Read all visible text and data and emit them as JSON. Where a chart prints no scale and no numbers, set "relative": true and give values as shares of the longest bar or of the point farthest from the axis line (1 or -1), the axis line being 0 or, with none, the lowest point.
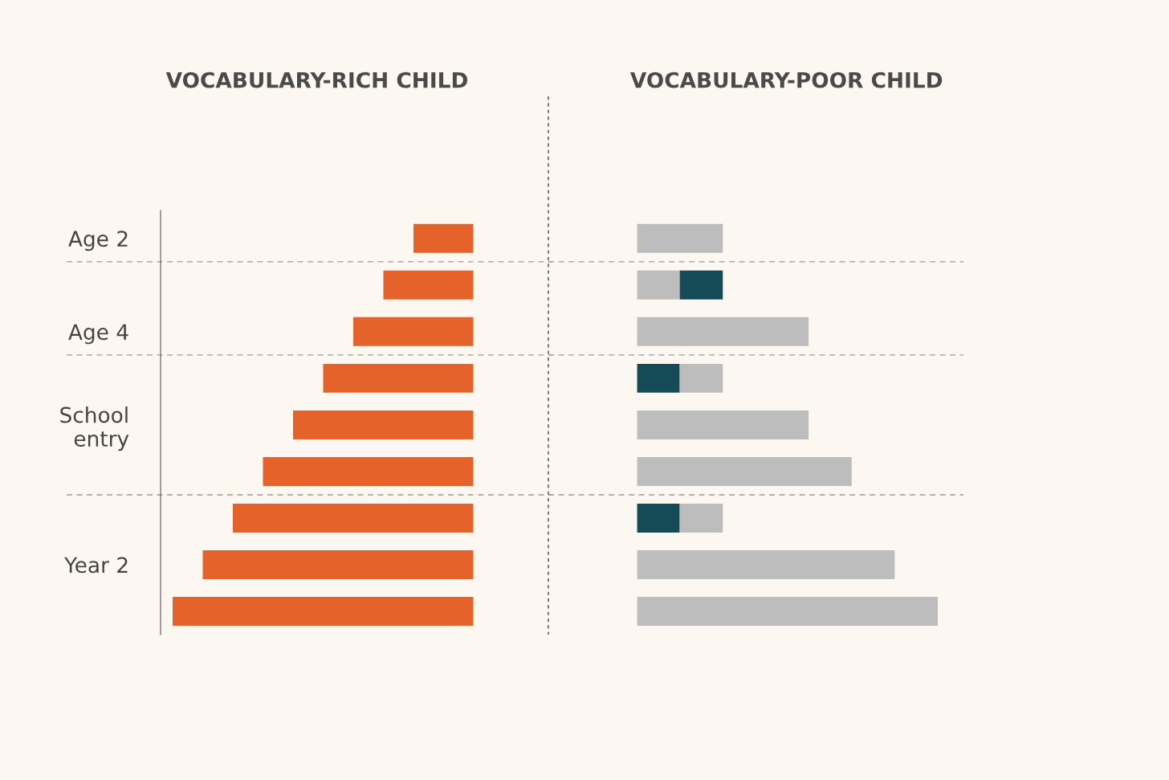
{
  "chart_data": [
    {
      "type": "bar",
      "orientation": "horizontal",
      "relative": true,
      "title": "VOCABULARY-RICH CHILD",
      "categories": [
        "Age 2",
        null,
        "Age 4",
        null,
        "School\nentry",
        null,
        null,
        "Year 2",
        null
      ],
      "series": [
        {
          "color": "#e5622a",
          "values": [
            0.2,
            0.3,
            0.4,
            0.5,
            0.6,
            0.7,
            0.8,
            0.9,
            1
          ]
        }
      ],
      "tick_labels": "y"
    },
    {
      "type": "bar",
      "orientation": "horizontal",
      "relative": true,
      "stacked": true,
      "title": "VOCABULARY-POOR CHILD",
      "categories": [
        null,
        null,
        null,
        null,
        null,
        null,
        null,
        null,
        null
      ],
      "series": [
        {
          "color": "#bdbdbd",
          "values": [
            0.286,
            0.143,
            0.571,
            0,
            0.571,
            0.714,
            0,
            0.857,
            1
          ]
        },
        {
          "color": "#154a57",
          "values": [
            0,
            0.143,
            0,
            0.143,
            0,
            0,
            0.143,
            0,
            0
          ]
        },
        {
          "color": "#bdbdbd",
          "values": [
            0,
            0,
            0,
            0.143,
            0,
            0,
            0.143,
            0,
            0
          ]
        }
      ],
      "tick_labels": false
    }
  ]
}
